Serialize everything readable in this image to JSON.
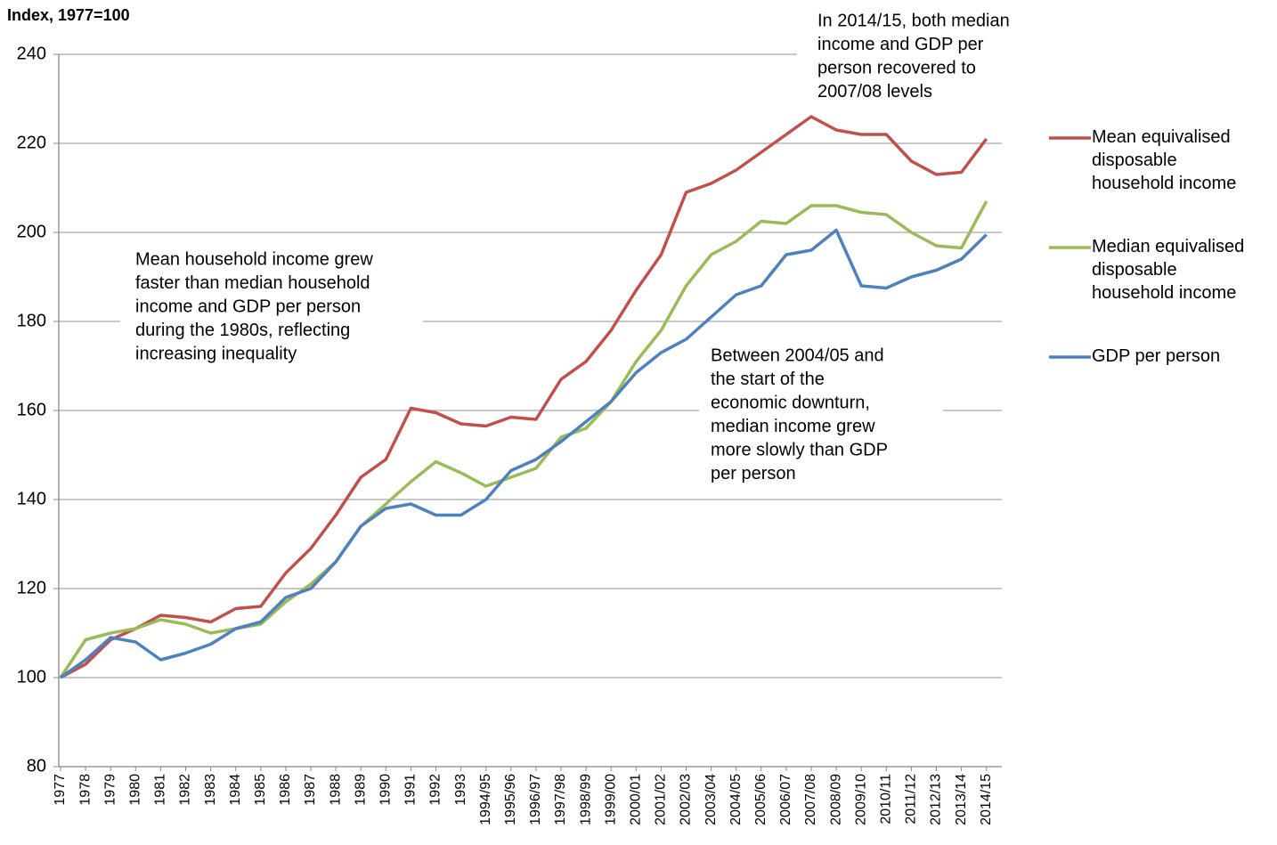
{
  "chart_data": {
    "type": "line",
    "ylabel": "Index, 1977=100",
    "categories": [
      "1977",
      "1978",
      "1979",
      "1980",
      "1981",
      "1982",
      "1983",
      "1984",
      "1985",
      "1986",
      "1987",
      "1988",
      "1989",
      "1990",
      "1991",
      "1992",
      "1993",
      "1994/95",
      "1995/96",
      "1996/97",
      "1997/98",
      "1998/99",
      "1999/00",
      "2000/01",
      "2001/02",
      "2002/03",
      "2003/04",
      "2004/05",
      "2005/06",
      "2006/07",
      "2007/08",
      "2008/09",
      "2009/10",
      "2010/11",
      "2011/12",
      "2012/13",
      "2013/14",
      "2014/15"
    ],
    "series": [
      {
        "name": "Mean equivalised disposable household income",
        "color": "#c0504d",
        "values": [
          100,
          103,
          108.5,
          111,
          114,
          113.5,
          112.5,
          115.5,
          116,
          123.5,
          129,
          136.5,
          145,
          149,
          160.5,
          159.5,
          157,
          156.5,
          158.5,
          158,
          167,
          171,
          178,
          187,
          195,
          209,
          211,
          214,
          218,
          222,
          226,
          223,
          222,
          222,
          216,
          213,
          213.5,
          221
        ]
      },
      {
        "name": "Median equivalised disposable household income",
        "color": "#9bbb59",
        "values": [
          100,
          108.5,
          110,
          111,
          113,
          112,
          110,
          111,
          112,
          117,
          121,
          126,
          134,
          139,
          144,
          148.5,
          146,
          143,
          145,
          147,
          154,
          156,
          162,
          171,
          178,
          188,
          195,
          198,
          202.5,
          202,
          206,
          206,
          204.5,
          204,
          200,
          197,
          196.5,
          207
        ]
      },
      {
        "name": "GDP per person",
        "color": "#4f81bd",
        "values": [
          100,
          104,
          109,
          108,
          104,
          105.5,
          107.5,
          111,
          112.5,
          118,
          120,
          126,
          134,
          138,
          139,
          136.5,
          136.5,
          140,
          146.5,
          149,
          153,
          157.5,
          162,
          168.5,
          173,
          176,
          181,
          186,
          188,
          195,
          196,
          200.5,
          188,
          187.5,
          190,
          191.5,
          194,
          199.5
        ]
      }
    ],
    "ylim": [
      80,
      240
    ],
    "yticks": [
      80,
      100,
      120,
      140,
      160,
      180,
      200,
      220,
      240
    ],
    "grid": true,
    "legend": "right",
    "annotations": [
      [
        "In 2014/15, both median",
        "income and GDP per",
        "person recovered to",
        "2007/08 levels"
      ],
      [
        "Mean household  income grew",
        "faster than median household",
        "income and GDP per person",
        "during the 1980s, reflecting",
        "increasing inequality"
      ],
      [
        "Between 2004/05  and",
        "the start of the",
        "economic downturn,",
        "median income grew",
        "more slowly than GDP",
        "per person"
      ]
    ]
  }
}
